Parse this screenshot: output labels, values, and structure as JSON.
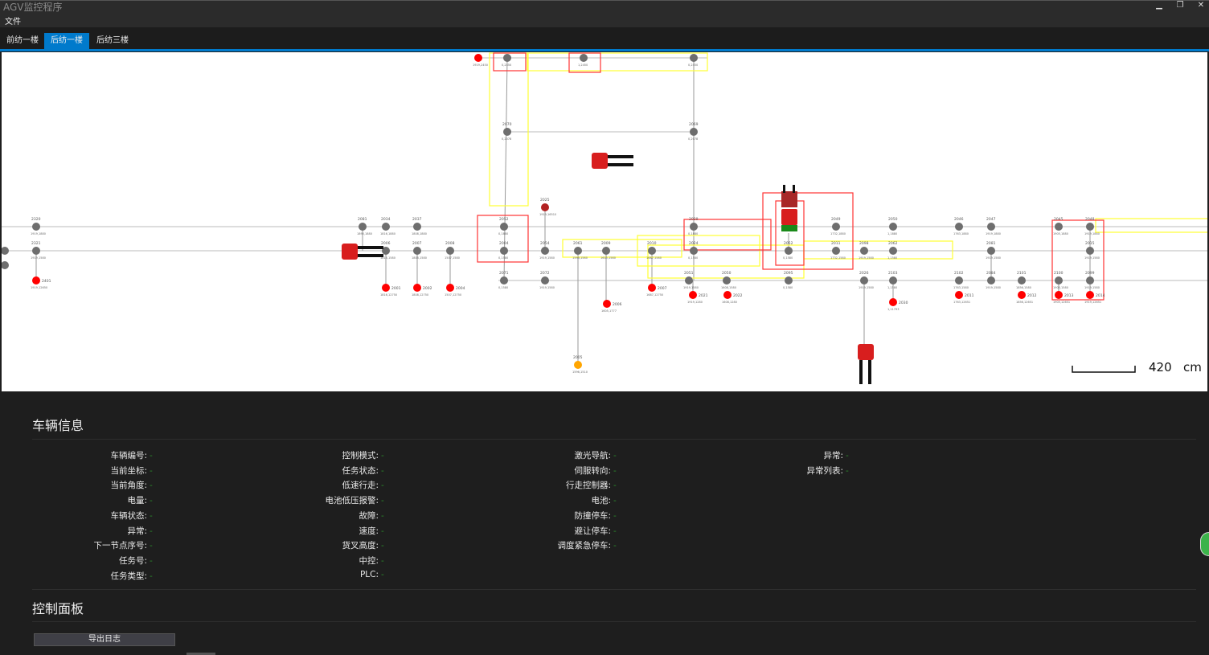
{
  "window": {
    "title": "AGV监控程序",
    "minimize": "▁",
    "restore": "❐",
    "close": "✕"
  },
  "menu": {
    "file": "文件"
  },
  "tabs": [
    {
      "label": "前纺一楼",
      "active": false
    },
    {
      "label": "后纺一楼",
      "active": true
    },
    {
      "label": "后纺三楼",
      "active": false
    }
  ],
  "colors": {
    "accent": "#007acc",
    "node_normal": "#6e6e6e",
    "node_station": "#ff0000",
    "node_charge": "#b22222",
    "node_waiting": "#ffa500",
    "zone_red": "#ff3333",
    "zone_yellow": "#ffff33",
    "value_green": "#2a8a2a"
  },
  "map": {
    "scale": {
      "value": "420",
      "unit": "cm"
    },
    "nodes": [
      {
        "id": "2320",
        "coord": "1919,1880",
        "type": "normal"
      },
      {
        "id": "2081",
        "coord": "1890,1880",
        "type": "normal"
      },
      {
        "id": "2034",
        "coord": "1816,1880",
        "type": "normal"
      },
      {
        "id": "2037",
        "coord": "1808,1880",
        "type": "normal"
      },
      {
        "id": "2052",
        "coord": "0,1880",
        "type": "normal"
      },
      {
        "id": "2029",
        "coord": "0,1880",
        "type": "normal"
      },
      {
        "id": "2049",
        "coord": "1732,1880",
        "type": "normal"
      },
      {
        "id": "2050",
        "coord": "1,1880",
        "type": "normal"
      },
      {
        "id": "2046",
        "coord": "1763,1880",
        "type": "normal"
      },
      {
        "id": "2047",
        "coord": "1919,1880",
        "type": "normal"
      },
      {
        "id": "2045",
        "coord": "1905,1880",
        "type": "normal"
      },
      {
        "id": "2048",
        "coord": "1919,1880",
        "type": "normal"
      },
      {
        "id": "2321",
        "coord": "1919,1580",
        "type": "normal"
      },
      {
        "id": "2006",
        "coord": "1816,1580",
        "type": "normal"
      },
      {
        "id": "2007",
        "coord": "1808,1580",
        "type": "normal"
      },
      {
        "id": "2008",
        "coord": "1507,1580",
        "type": "normal"
      },
      {
        "id": "2004",
        "coord": "0,1580",
        "type": "normal"
      },
      {
        "id": "2054",
        "coord": "1919,1580",
        "type": "normal"
      },
      {
        "id": "2061",
        "coord": "1596,1580",
        "type": "normal"
      },
      {
        "id": "2009",
        "coord": "1605,1580",
        "type": "normal"
      },
      {
        "id": "2010",
        "coord": "1687,1580",
        "type": "normal"
      },
      {
        "id": "2024",
        "coord": "0,1580",
        "type": "normal"
      },
      {
        "id": "2052",
        "coord": "0,1580",
        "type": "normal"
      },
      {
        "id": "2011",
        "coord": "1732,1580",
        "type": "normal"
      },
      {
        "id": "2098",
        "coord": "1919,1580",
        "type": "normal"
      },
      {
        "id": "2062",
        "coord": "1,1580",
        "type": "normal"
      },
      {
        "id": "2081",
        "coord": "1919,1580",
        "type": "normal"
      },
      {
        "id": "2015",
        "coord": "1919,1580",
        "type": "normal"
      },
      {
        "id": "2071",
        "coord": "0,1580",
        "type": "normal"
      },
      {
        "id": "2072",
        "coord": "1919,1580",
        "type": "normal"
      },
      {
        "id": "2051",
        "coord": "1919,1580",
        "type": "normal"
      },
      {
        "id": "2050",
        "coord": "1608,1580",
        "type": "normal"
      },
      {
        "id": "2095",
        "coord": "0,1580",
        "type": "normal"
      },
      {
        "id": "2026",
        "coord": "1919,1580",
        "type": "normal"
      },
      {
        "id": "2103",
        "coord": "1,1580",
        "type": "normal"
      },
      {
        "id": "2102",
        "coord": "1763,1580",
        "type": "normal"
      },
      {
        "id": "2084",
        "coord": "1919,1580",
        "type": "normal"
      },
      {
        "id": "2101",
        "coord": "1856,1580",
        "type": "normal"
      },
      {
        "id": "2100",
        "coord": "1905,1580",
        "type": "normal"
      },
      {
        "id": "2099",
        "coord": "1919,1580",
        "type": "normal"
      },
      {
        "id": "2401",
        "coord": "1919,12650",
        "type": "station"
      },
      {
        "id": "2001",
        "coord": "1816,12750",
        "type": "station"
      },
      {
        "id": "2002",
        "coord": "1808,12750",
        "type": "station"
      },
      {
        "id": "2004",
        "coord": "1507,12750",
        "type": "station"
      },
      {
        "id": "2007",
        "coord": "1687,12750",
        "type": "station"
      },
      {
        "id": "2021",
        "coord": "1919,1280",
        "type": "station"
      },
      {
        "id": "2022",
        "coord": "1608,1280",
        "type": "station"
      },
      {
        "id": "2006",
        "coord": "1605,1777",
        "type": "station"
      },
      {
        "id": "2030",
        "coord": "1,11793",
        "type": "station"
      },
      {
        "id": "2011",
        "coord": "1763,12651",
        "type": "station"
      },
      {
        "id": "2012",
        "coord": "1856,12651",
        "type": "station"
      },
      {
        "id": "2013",
        "coord": "1905,12651",
        "type": "station"
      },
      {
        "id": "2014",
        "coord": "1919,12651",
        "type": "station"
      },
      {
        "id": "",
        "coord": "1919,2450",
        "type": "station"
      },
      {
        "id": "2025",
        "coord": "1919,16510",
        "type": "charge"
      },
      {
        "id": "2005",
        "coord": "1596,1510",
        "type": "waiting"
      },
      {
        "id": "",
        "coord": "0,2450",
        "type": "normal"
      },
      {
        "id": "",
        "coord": "1,2450",
        "type": "normal"
      },
      {
        "id": "",
        "coord": "0,2450",
        "type": "normal"
      },
      {
        "id": "2070",
        "coord": "0,2078",
        "type": "normal"
      },
      {
        "id": "2069",
        "coord": "0,2078",
        "type": "normal"
      }
    ]
  },
  "vehicle_info": {
    "title": "车辆信息",
    "columns": [
      [
        {
          "label": "车辆编号:",
          "value": "-"
        },
        {
          "label": "当前坐标:",
          "value": "-"
        },
        {
          "label": "当前角度:",
          "value": "-"
        },
        {
          "label": "电量:",
          "value": "-"
        },
        {
          "label": "车辆状态:",
          "value": "-"
        },
        {
          "label": "异常:",
          "value": "-"
        },
        {
          "label": "下一节点序号:",
          "value": "-"
        },
        {
          "label": "任务号:",
          "value": "-"
        },
        {
          "label": "任务类型:",
          "value": "-"
        }
      ],
      [
        {
          "label": "控制模式:",
          "value": "-"
        },
        {
          "label": "任务状态:",
          "value": "-"
        },
        {
          "label": "低速行走:",
          "value": "-"
        },
        {
          "label": "电池低压报警:",
          "value": "-"
        },
        {
          "label": "故障:",
          "value": "-"
        },
        {
          "label": "速度:",
          "value": "-"
        },
        {
          "label": "货叉高度:",
          "value": "-"
        },
        {
          "label": "中控:",
          "value": "-"
        },
        {
          "label": "PLC:",
          "value": "-"
        }
      ],
      [
        {
          "label": "激光导航:",
          "value": "-"
        },
        {
          "label": "伺服转向:",
          "value": "-"
        },
        {
          "label": "行走控制器:",
          "value": "-"
        },
        {
          "label": "电池:",
          "value": "-"
        },
        {
          "label": "防撞停车:",
          "value": "-"
        },
        {
          "label": "避让停车:",
          "value": "-"
        },
        {
          "label": "调度紧急停车:",
          "value": "-"
        }
      ],
      [
        {
          "label": "异常:",
          "value": "-"
        },
        {
          "label": "异常列表:",
          "value": "-"
        }
      ]
    ]
  },
  "control_panel": {
    "title": "控制面板",
    "export_log": "导出日志"
  }
}
